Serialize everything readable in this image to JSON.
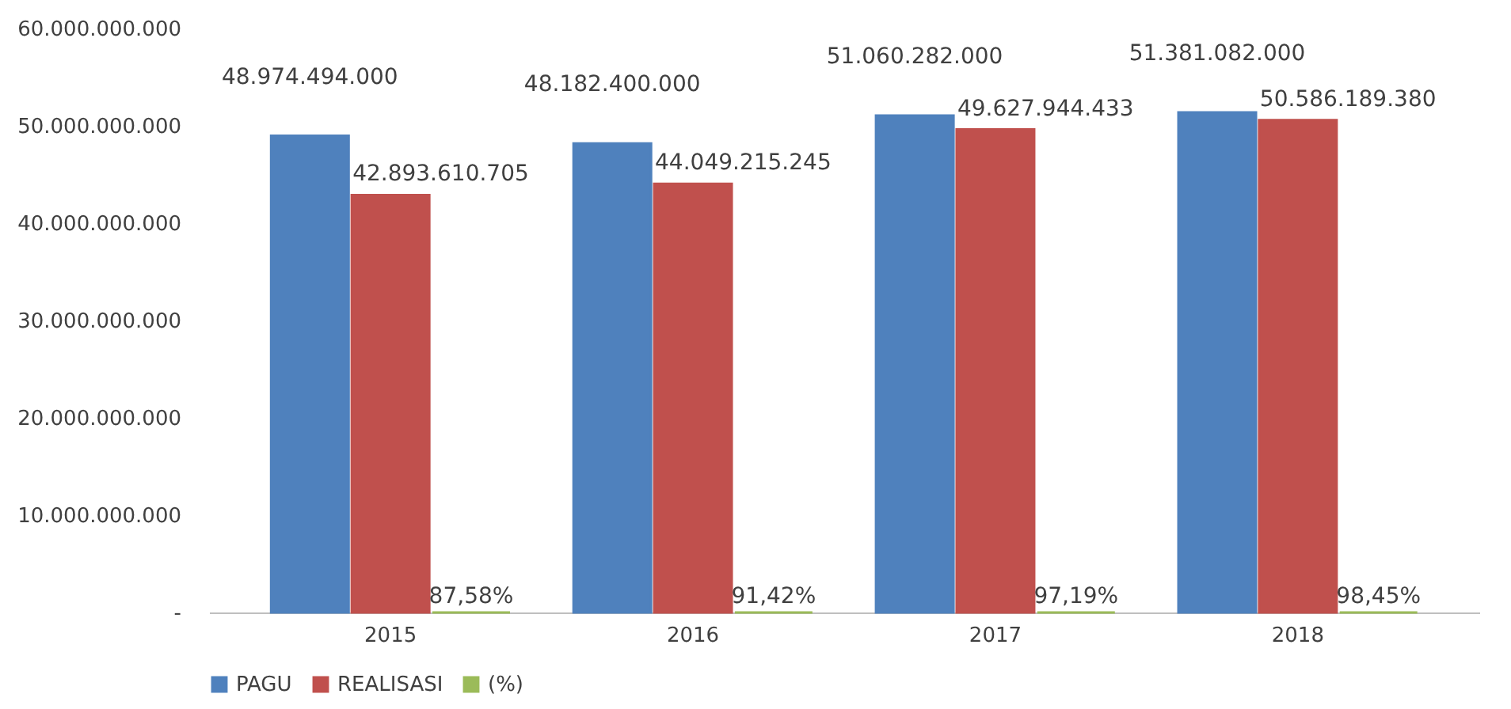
{
  "chart_data": {
    "type": "bar",
    "categories": [
      "2015",
      "2016",
      "2017",
      "2018"
    ],
    "series": [
      {
        "name": "PAGU",
        "color": "#4f81bd",
        "values": [
          48974494000,
          48182400000,
          51060282000,
          51381082000
        ],
        "value_labels": [
          "48.974.494.000",
          "48.182.400.000",
          "51.060.282.000",
          "51.381.082.000"
        ]
      },
      {
        "name": "REALISASI",
        "color": "#c0504d",
        "values": [
          42893610705,
          44049215245,
          49627944433,
          50586189380
        ],
        "value_labels": [
          "42.893.610.705",
          "44.049.215.245",
          "49.627.944.433",
          "50.586.189.380"
        ]
      },
      {
        "name": "(%)",
        "color": "#9bbb59",
        "values": [
          87.58,
          91.42,
          97.19,
          98.45
        ],
        "value_labels": [
          "87,58%",
          "91,42%",
          "97,19%",
          "98,45%"
        ]
      }
    ],
    "ylim": [
      0,
      60000000000
    ],
    "yticks": [
      {
        "value": 0,
        "label": "-"
      },
      {
        "value": 10000000000,
        "label": "10.000.000.000"
      },
      {
        "value": 20000000000,
        "label": "20.000.000.000"
      },
      {
        "value": 30000000000,
        "label": "30.000.000.000"
      },
      {
        "value": 40000000000,
        "label": "40.000.000.000"
      },
      {
        "value": 50000000000,
        "label": "50.000.000.000"
      },
      {
        "value": 60000000000,
        "label": "60.000.000.000"
      }
    ],
    "grid": false,
    "legend": "bottom"
  }
}
